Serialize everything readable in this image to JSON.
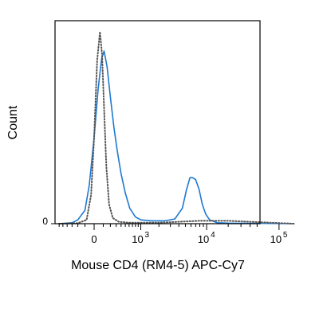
{
  "chart_data": {
    "type": "line",
    "xlabel": "Mouse CD4 (RM4-5) APC-Cy7",
    "ylabel": "Count",
    "x_scale": "biexponential",
    "x_ticks": [
      {
        "value": 0,
        "base": "0",
        "exp": ""
      },
      {
        "value": 1000,
        "base": "10",
        "exp": "3"
      },
      {
        "value": 10000,
        "base": "10",
        "exp": "4"
      },
      {
        "value": 100000,
        "base": "10",
        "exp": "5"
      }
    ],
    "y_ticks": [
      {
        "value": 0,
        "label": "0"
      }
    ],
    "ylim": [
      0,
      100
    ],
    "legend": "none",
    "series": [
      {
        "style": "solid",
        "color": "#1f78d1",
        "points": [
          [
            -600,
            0
          ],
          [
            -300,
            0.5
          ],
          [
            -200,
            2
          ],
          [
            -100,
            7
          ],
          [
            -50,
            20
          ],
          [
            0,
            45
          ],
          [
            40,
            70
          ],
          [
            80,
            86
          ],
          [
            110,
            90
          ],
          [
            150,
            82
          ],
          [
            200,
            66
          ],
          [
            260,
            50
          ],
          [
            320,
            38
          ],
          [
            400,
            26
          ],
          [
            500,
            16
          ],
          [
            620,
            8
          ],
          [
            800,
            3.5
          ],
          [
            1000,
            2
          ],
          [
            1500,
            1.5
          ],
          [
            2500,
            1.5
          ],
          [
            3500,
            2.5
          ],
          [
            4500,
            8
          ],
          [
            5200,
            18
          ],
          [
            5800,
            24
          ],
          [
            6300,
            24
          ],
          [
            7000,
            23
          ],
          [
            7800,
            18
          ],
          [
            8700,
            10
          ],
          [
            9700,
            5
          ],
          [
            11000,
            2
          ],
          [
            14000,
            0.5
          ],
          [
            20000,
            0.3
          ],
          [
            40000,
            0.2
          ],
          [
            160000,
            0
          ]
        ]
      },
      {
        "style": "dotted",
        "color": "#555555",
        "points": [
          [
            -600,
            0
          ],
          [
            -200,
            0.3
          ],
          [
            -80,
            2
          ],
          [
            -30,
            15
          ],
          [
            0,
            45
          ],
          [
            30,
            85
          ],
          [
            60,
            100
          ],
          [
            85,
            88
          ],
          [
            110,
            60
          ],
          [
            140,
            30
          ],
          [
            180,
            10
          ],
          [
            240,
            3
          ],
          [
            350,
            1
          ],
          [
            600,
            0.5
          ],
          [
            2000,
            0.5
          ],
          [
            4000,
            1
          ],
          [
            8000,
            1.5
          ],
          [
            20000,
            1.5
          ],
          [
            40000,
            1
          ],
          [
            80000,
            0.5
          ],
          [
            160000,
            0
          ]
        ]
      }
    ]
  }
}
